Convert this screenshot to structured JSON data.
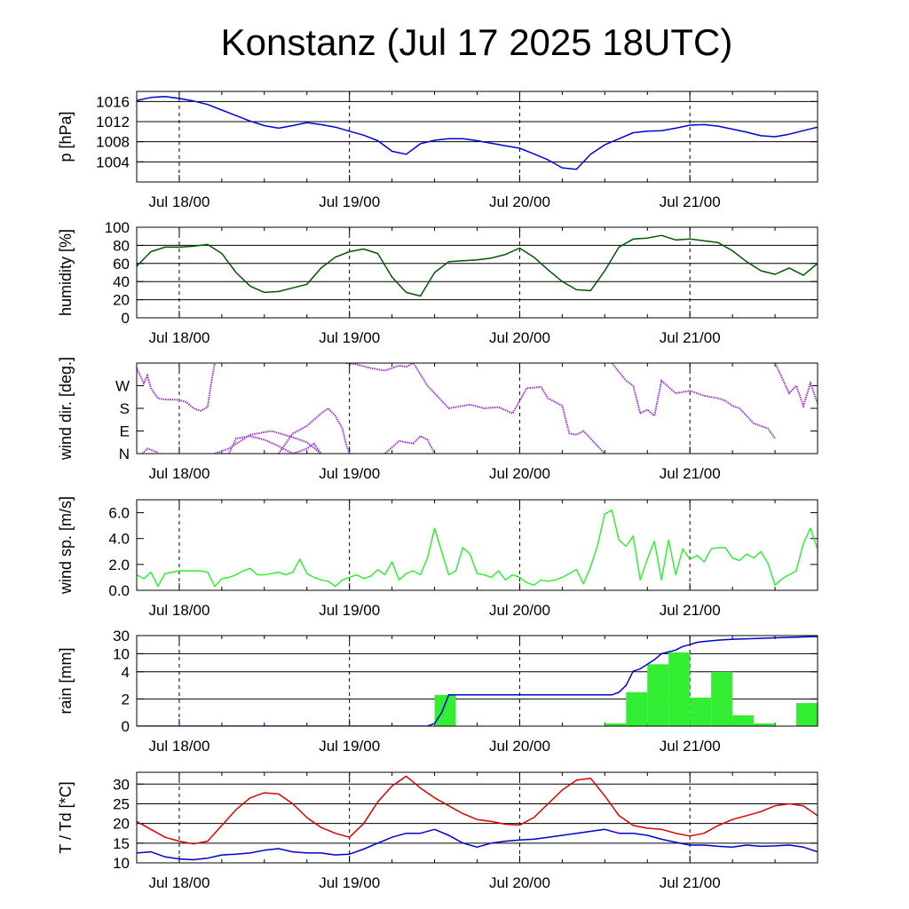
{
  "title": "Konstanz (Jul 17 2025 18UTC)",
  "x_tick_labels": [
    "Jul 18/00",
    "Jul 19/00",
    "Jul 20/00",
    "Jul 21/00"
  ],
  "colors": {
    "pressure": "#0000dd",
    "humidity": "#005500",
    "wind_dir": "#9933cc",
    "wind_speed": "#33ee33",
    "rain_bar": "#33ee33",
    "rain_cumulative": "#0000cc",
    "temperature": "#dd0000",
    "dewpoint": "#0000cc"
  },
  "chart_data": [
    {
      "type": "line",
      "ylabel": "p [hPa]",
      "ylim": [
        1000,
        1018
      ],
      "yticks": [
        1004,
        1008,
        1012,
        1016
      ],
      "ytick_labels": [
        "1004",
        "1008",
        "1012",
        "1016"
      ],
      "grid": true,
      "x_unit": "hours since Jul 17 18UTC",
      "xlim": [
        0,
        96
      ],
      "series": [
        {
          "color_key": "pressure",
          "x": [
            0,
            2,
            4,
            6,
            8,
            10,
            12,
            14,
            16,
            18,
            20,
            22,
            24,
            26,
            28,
            30,
            32,
            34,
            36,
            38,
            40,
            42,
            44,
            46,
            48,
            50,
            52,
            54,
            56,
            58,
            60,
            62,
            64,
            66,
            68,
            70,
            72,
            74,
            76,
            78,
            80,
            82,
            84,
            86,
            88,
            90,
            92,
            94,
            96
          ],
          "y": [
            1016.2,
            1016.8,
            1017.0,
            1016.6,
            1016.1,
            1015.4,
            1014.3,
            1013.2,
            1012.1,
            1011.2,
            1010.7,
            1011.2,
            1011.8,
            1011.4,
            1010.9,
            1010.1,
            1009.3,
            1008.2,
            1006.1,
            1005.5,
            1007.6,
            1008.3,
            1008.6,
            1008.6,
            1008.2,
            1007.7,
            1007.2,
            1006.7,
            1005.6,
            1004.4,
            1002.8,
            1002.5,
            1005.5,
            1007.4,
            1008.6,
            1009.8,
            1010.1,
            1010.2,
            1010.7,
            1011.3,
            1011.4,
            1011.1,
            1010.5,
            1009.9,
            1009.2,
            1009.0,
            1009.5,
            1010.2,
            1010.9
          ]
        }
      ]
    },
    {
      "type": "line",
      "ylabel": "humidity [%]",
      "ylim": [
        0,
        100
      ],
      "yticks": [
        0,
        20,
        40,
        60,
        80,
        100
      ],
      "ytick_labels": [
        "0",
        "20",
        "40",
        "60",
        "80",
        "100"
      ],
      "grid": true,
      "x_unit": "hours since Jul 17 18UTC",
      "xlim": [
        0,
        96
      ],
      "series": [
        {
          "color_key": "humidity",
          "x": [
            0,
            2,
            4,
            6,
            8,
            10,
            12,
            14,
            16,
            18,
            20,
            22,
            24,
            26,
            28,
            30,
            32,
            34,
            36,
            38,
            40,
            42,
            44,
            46,
            48,
            50,
            52,
            54,
            56,
            58,
            60,
            62,
            64,
            66,
            68,
            70,
            72,
            74,
            76,
            78,
            80,
            82,
            84,
            86,
            88,
            90,
            92,
            94,
            96
          ],
          "y": [
            57,
            73,
            78,
            78,
            79,
            81,
            71,
            50,
            35,
            28,
            29,
            33,
            37,
            55,
            67,
            73,
            76,
            71,
            45,
            28,
            24,
            50,
            62,
            63,
            64,
            66,
            70,
            77,
            67,
            53,
            40,
            31,
            30,
            52,
            78,
            87,
            88,
            91,
            86,
            87,
            85,
            83,
            74,
            62,
            52,
            48,
            55,
            47,
            60
          ]
        }
      ]
    },
    {
      "type": "scatter",
      "ylabel": "wind dir. [deg.]",
      "ylim": [
        0,
        360
      ],
      "yticks": [
        0,
        90,
        180,
        270
      ],
      "ytick_labels": [
        "N",
        "E",
        "S",
        "W"
      ],
      "grid": false,
      "x_unit": "hours since Jul 17 18UTC",
      "xlim": [
        0,
        96
      ],
      "series": [
        {
          "color_key": "wind_dir",
          "x": [
            0,
            1,
            1.5,
            2,
            3,
            4,
            5,
            6,
            7,
            8,
            9,
            10,
            10.5,
            11
          ],
          "y": [
            340,
            280,
            310,
            260,
            220,
            215,
            215,
            213,
            205,
            180,
            170,
            185,
            280,
            360
          ]
        },
        {
          "color_key": "wind_dir",
          "x": [
            11,
            13,
            16,
            19,
            22,
            24,
            26
          ],
          "y": [
            0,
            20,
            75,
            90,
            65,
            45,
            0
          ]
        },
        {
          "color_key": "wind_dir",
          "x": [
            0.8,
            1.5,
            3
          ],
          "y": [
            0,
            20,
            5
          ]
        },
        {
          "color_key": "wind_dir",
          "x": [
            13,
            14,
            16,
            18,
            20,
            21,
            22,
            23,
            24,
            25,
            26
          ],
          "y": [
            0,
            60,
            70,
            55,
            30,
            15,
            0,
            10,
            20,
            40,
            0
          ]
        },
        {
          "color_key": "wind_dir",
          "x": [
            20,
            22,
            24,
            26,
            27,
            28,
            29,
            29.5,
            30
          ],
          "y": [
            0,
            80,
            110,
            160,
            180,
            150,
            100,
            40,
            0
          ]
        },
        {
          "color_key": "wind_dir",
          "x": [
            29.5,
            31,
            33,
            35,
            37,
            38,
            39
          ],
          "y": [
            360,
            355,
            340,
            330,
            350,
            345,
            360
          ]
        },
        {
          "color_key": "wind_dir",
          "x": [
            35,
            37,
            39,
            40,
            41,
            42
          ],
          "y": [
            0,
            50,
            40,
            70,
            55,
            0
          ]
        },
        {
          "color_key": "wind_dir",
          "x": [
            39,
            41,
            44,
            47,
            49,
            51,
            53,
            55,
            57,
            58,
            60,
            61,
            62,
            63,
            64,
            66
          ],
          "y": [
            360,
            270,
            180,
            195,
            180,
            185,
            160,
            260,
            265,
            220,
            190,
            80,
            75,
            90,
            60,
            0
          ]
        },
        {
          "color_key": "wind_dir",
          "x": [
            67,
            69,
            70,
            71,
            72,
            73,
            74,
            76,
            78,
            80,
            82,
            83,
            84,
            85,
            87,
            89,
            90
          ],
          "y": [
            360,
            290,
            270,
            160,
            175,
            150,
            290,
            240,
            250,
            230,
            220,
            210,
            190,
            180,
            120,
            100,
            60
          ]
        },
        {
          "color_key": "wind_dir",
          "x": [
            90,
            91,
            92,
            93,
            94,
            95,
            96
          ],
          "y": [
            360,
            300,
            240,
            270,
            190,
            280,
            200
          ]
        }
      ]
    },
    {
      "type": "line",
      "ylabel": "wind sp. [m/s]",
      "ylim": [
        0,
        7
      ],
      "yticks": [
        0,
        2,
        4,
        6
      ],
      "ytick_labels": [
        "0.0",
        "2.0",
        "4.0",
        "6.0"
      ],
      "grid": false,
      "x_unit": "hours since Jul 17 18UTC",
      "xlim": [
        0,
        96
      ],
      "series": [
        {
          "color_key": "wind_speed",
          "x": [
            0,
            1,
            2,
            3,
            4,
            5,
            6,
            7,
            8,
            9,
            10,
            11,
            12,
            13,
            14,
            15,
            16,
            17,
            18,
            19,
            20,
            21,
            22,
            23,
            24,
            25,
            26,
            27,
            28,
            29,
            30,
            31,
            32,
            33,
            34,
            35,
            36,
            37,
            38,
            39,
            40,
            41,
            42,
            43,
            44,
            45,
            46,
            47,
            48,
            49,
            50,
            51,
            52,
            53,
            54,
            55,
            56,
            57,
            58,
            59,
            60,
            61,
            62,
            63,
            64,
            65,
            66,
            67,
            68,
            69,
            70,
            71,
            72,
            73,
            74,
            75,
            76,
            77,
            78,
            79,
            80,
            81,
            82,
            83,
            84,
            85,
            86,
            87,
            88,
            89,
            90,
            91,
            92,
            93,
            94,
            95,
            96
          ],
          "y": [
            1.2,
            0.9,
            1.4,
            0.3,
            1.3,
            1.4,
            1.5,
            1.5,
            1.5,
            1.5,
            1.4,
            0.3,
            0.9,
            1.0,
            1.2,
            1.5,
            1.7,
            1.2,
            1.2,
            1.3,
            1.4,
            1.2,
            1.4,
            2.4,
            1.3,
            1.0,
            0.8,
            0.7,
            0.3,
            0.8,
            1.0,
            1.2,
            0.9,
            1.1,
            1.6,
            1.2,
            2.2,
            0.8,
            1.3,
            1.5,
            1.2,
            2.5,
            4.8,
            3.0,
            1.2,
            1.5,
            3.3,
            2.8,
            1.3,
            1.2,
            1.0,
            1.5,
            0.8,
            1.2,
            1.0,
            0.6,
            0.4,
            0.8,
            0.7,
            0.8,
            1.0,
            1.3,
            1.6,
            0.5,
            1.8,
            3.5,
            5.9,
            6.2,
            3.9,
            3.4,
            4.2,
            0.8,
            2.4,
            3.8,
            0.8,
            3.9,
            1.2,
            3.2,
            2.4,
            2.7,
            2.2,
            3.2,
            3.3,
            3.3,
            2.5,
            2.3,
            2.8,
            2.5,
            3.0,
            2.1,
            0.4,
            0.9,
            1.2,
            1.5,
            3.6,
            4.8,
            3.2
          ]
        }
      ]
    },
    {
      "type": "bar",
      "ylabel": "rain [mm]",
      "ylim": [
        0,
        30
      ],
      "yscale": "nonlinear",
      "yticks": [
        0,
        2,
        4,
        10,
        30
      ],
      "ytick_labels": [
        "0",
        "2",
        "4",
        "10",
        "30"
      ],
      "grid": true,
      "x_unit": "hours since Jul 17 18UTC",
      "xlim": [
        0,
        96
      ],
      "bar_width_hours": 3,
      "bars": [
        {
          "x": 43.5,
          "value": 2.3
        },
        {
          "x": 67.5,
          "value": 0.2
        },
        {
          "x": 70.5,
          "value": 2.5
        },
        {
          "x": 73.5,
          "value": 6.5
        },
        {
          "x": 76.5,
          "value": 11.5
        },
        {
          "x": 79.5,
          "value": 2.1
        },
        {
          "x": 82.5,
          "value": 4.0
        },
        {
          "x": 85.5,
          "value": 0.8
        },
        {
          "x": 88.5,
          "value": 0.2
        },
        {
          "x": 94.5,
          "value": 1.7
        }
      ],
      "series": [
        {
          "color_key": "rain_cumulative",
          "x": [
            0,
            41,
            42,
            43,
            44,
            45,
            46,
            50,
            60,
            67,
            68,
            69,
            70,
            71,
            72,
            73,
            74,
            75,
            76,
            77,
            78,
            79,
            80,
            82,
            84,
            86,
            88,
            90,
            92,
            94,
            96
          ],
          "y": [
            0,
            0,
            0.2,
            1.0,
            2.3,
            2.3,
            2.3,
            2.3,
            2.3,
            2.3,
            2.5,
            3.0,
            4.2,
            5.0,
            6.5,
            8.0,
            10.0,
            12.0,
            14.0,
            18.0,
            20.0,
            22.5,
            23.5,
            25.0,
            26.0,
            26.5,
            27.0,
            27.5,
            28.0,
            28.5,
            29.0
          ]
        }
      ]
    },
    {
      "type": "line",
      "ylabel": "T / Td [*C]",
      "ylim": [
        10,
        33
      ],
      "yticks": [
        10,
        15,
        20,
        25,
        30
      ],
      "ytick_labels": [
        "10",
        "15",
        "20",
        "25",
        "30"
      ],
      "grid": true,
      "x_unit": "hours since Jul 17 18UTC",
      "xlim": [
        0,
        96
      ],
      "series": [
        {
          "color_key": "temperature",
          "x": [
            0,
            2,
            4,
            6,
            8,
            10,
            12,
            14,
            16,
            18,
            20,
            22,
            24,
            26,
            28,
            30,
            32,
            34,
            36,
            38,
            40,
            42,
            44,
            46,
            48,
            50,
            52,
            54,
            56,
            58,
            60,
            62,
            64,
            66,
            68,
            70,
            72,
            74,
            76,
            78,
            80,
            82,
            84,
            86,
            88,
            90,
            92,
            94,
            96
          ],
          "y": [
            20.5,
            18.5,
            16.5,
            15.5,
            14.8,
            15.5,
            19.5,
            23.5,
            26.5,
            27.8,
            27.5,
            25.0,
            21.5,
            19.0,
            17.5,
            16.5,
            20.0,
            25.5,
            29.5,
            32.0,
            29.0,
            26.5,
            24.5,
            22.5,
            21.0,
            20.5,
            19.8,
            19.6,
            21.5,
            25.0,
            28.5,
            31.0,
            31.5,
            27.0,
            22.0,
            19.5,
            18.8,
            18.5,
            17.5,
            16.8,
            17.5,
            19.5,
            21.0,
            22.0,
            23.0,
            24.5,
            25.0,
            24.5,
            22.0
          ]
        },
        {
          "color_key": "dewpoint",
          "x": [
            0,
            2,
            4,
            6,
            8,
            10,
            12,
            14,
            16,
            18,
            20,
            22,
            24,
            26,
            28,
            30,
            32,
            34,
            36,
            38,
            40,
            42,
            44,
            46,
            48,
            50,
            52,
            54,
            56,
            58,
            60,
            62,
            64,
            66,
            68,
            70,
            72,
            74,
            76,
            78,
            80,
            82,
            84,
            86,
            88,
            90,
            92,
            94,
            96
          ],
          "y": [
            12.5,
            12.8,
            11.5,
            11.0,
            10.8,
            11.2,
            12.0,
            12.2,
            12.5,
            13.2,
            13.6,
            12.8,
            12.5,
            12.5,
            12.0,
            12.2,
            13.5,
            15.0,
            16.5,
            17.5,
            17.5,
            18.5,
            17.0,
            15.0,
            14.0,
            15.0,
            15.5,
            15.8,
            16.0,
            16.5,
            17.0,
            17.5,
            18.0,
            18.5,
            17.5,
            17.5,
            17.0,
            16.0,
            15.2,
            14.5,
            14.5,
            14.2,
            14.0,
            14.5,
            14.2,
            14.3,
            14.5,
            14.0,
            12.8
          ]
        }
      ]
    }
  ]
}
